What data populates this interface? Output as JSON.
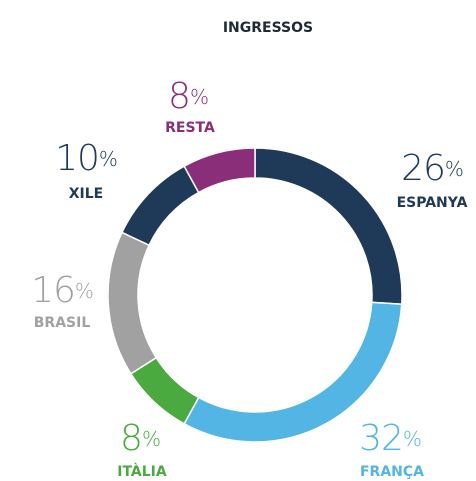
{
  "chart_data": {
    "type": "donut",
    "title": "INGRESSOS",
    "unit": "%",
    "categories": [
      "ESPANYA",
      "FRANÇA",
      "ITÀLIA",
      "BRASIL",
      "XILE",
      "RESTA"
    ],
    "values": [
      26,
      32,
      8,
      16,
      10,
      8
    ],
    "colors": [
      "#1e3a58",
      "#52b5e3",
      "#4aaa3f",
      "#a1a1a1",
      "#1e3a58",
      "#8a2e79"
    ]
  }
}
